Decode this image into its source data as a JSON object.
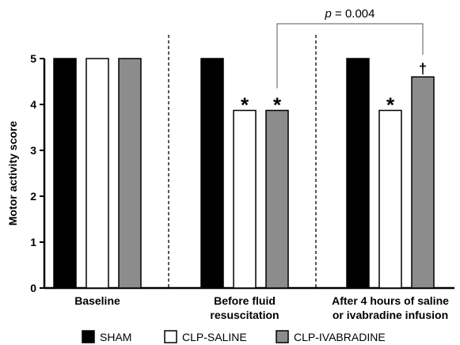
{
  "chart_data": {
    "type": "bar",
    "title": "",
    "xlabel": "",
    "ylabel": "Motor activity score",
    "ylim": [
      0,
      5
    ],
    "yticks": [
      "0",
      "1",
      "2",
      "3",
      "4",
      "5"
    ],
    "categories": [
      [
        "Baseline"
      ],
      [
        "Before fluid",
        "resuscitation"
      ],
      [
        "After 4 hours of saline",
        "or ivabradine infusion"
      ]
    ],
    "series": [
      {
        "name": "SHAM",
        "color": "#000000",
        "values": [
          5,
          5,
          5
        ],
        "marks": [
          "",
          "",
          ""
        ]
      },
      {
        "name": "CLP-SALINE",
        "color": "#ffffff",
        "values": [
          5,
          3.87,
          3.87
        ],
        "marks": [
          "",
          "*",
          "*"
        ]
      },
      {
        "name": "CLP-IVABRADINE",
        "color": "#8c8c8c",
        "values": [
          5,
          3.87,
          4.6
        ],
        "marks": [
          "",
          "*",
          "†"
        ]
      }
    ],
    "significance": {
      "text_prefix": "p",
      "text_rest": " = 0.004"
    },
    "grid": false,
    "legend_position": "bottom"
  }
}
